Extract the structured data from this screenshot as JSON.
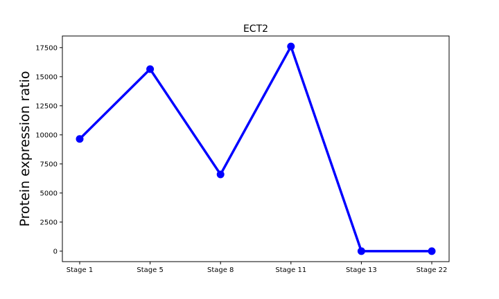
{
  "chart_data": {
    "type": "line",
    "title": "ECT2",
    "xlabel": "",
    "ylabel": "Protein expression ratio",
    "categories": [
      "Stage 1",
      "Stage 5",
      "Stage 8",
      "Stage 11",
      "Stage 13",
      "Stage 22"
    ],
    "series": [
      {
        "values": [
          9650,
          15650,
          6600,
          17600,
          0,
          0
        ]
      }
    ],
    "yticks": [
      0,
      2500,
      5000,
      7500,
      10000,
      12500,
      15000,
      17500
    ],
    "ylim": [
      -900,
      18500
    ],
    "grid": false,
    "legend": "none",
    "line_color": "#0000ff"
  }
}
